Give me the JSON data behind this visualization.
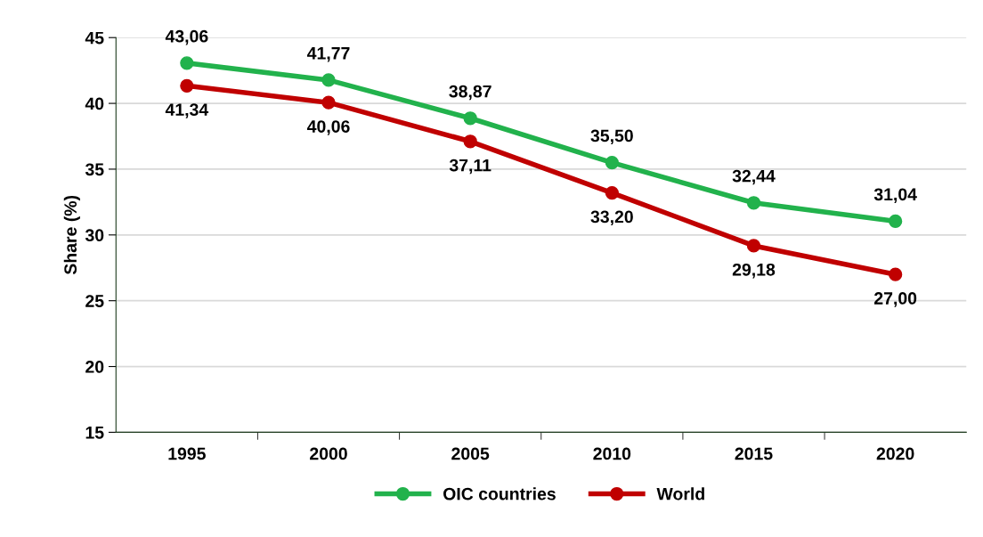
{
  "chart_data": {
    "type": "line",
    "ylabel": "Share (%)",
    "categories": [
      "1995",
      "2000",
      "2005",
      "2010",
      "2015",
      "2020"
    ],
    "series": [
      {
        "name": "OIC countries",
        "color": "#22b24c",
        "values": [
          43.06,
          41.77,
          38.87,
          35.5,
          32.44,
          31.04
        ],
        "value_labels": [
          "43,06",
          "41,77",
          "38,87",
          "35,50",
          "32,44",
          "31,04"
        ]
      },
      {
        "name": "World",
        "color": "#c00000",
        "values": [
          41.34,
          40.06,
          37.11,
          33.2,
          29.18,
          27.0
        ],
        "value_labels": [
          "41,34",
          "40,06",
          "37,11",
          "33,20",
          "29,18",
          "27,00"
        ]
      }
    ],
    "ylim": [
      15,
      45
    ],
    "yticks": [
      15,
      20,
      25,
      30,
      35,
      40,
      45
    ],
    "grid": "y",
    "legend": "bottom",
    "marker": "circle",
    "line_style": "solid"
  }
}
